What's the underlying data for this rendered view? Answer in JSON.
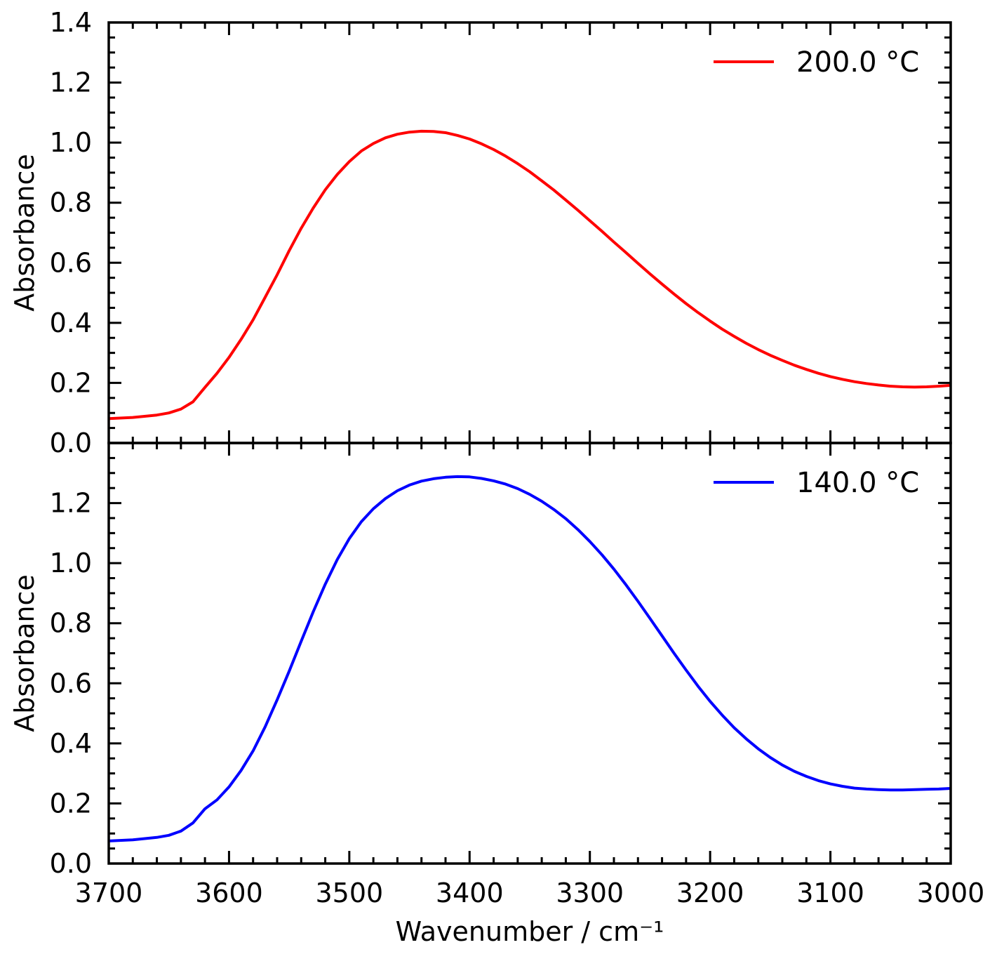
{
  "chart_data": [
    {
      "type": "line",
      "panel": "top",
      "xlabel": "",
      "ylabel": "Absorbance",
      "xlim": [
        3700,
        3000
      ],
      "ylim": [
        0.0,
        1.4
      ],
      "x_reversed": true,
      "yticks": [
        "0.0",
        "0.2",
        "0.4",
        "0.6",
        "0.8",
        "1.0",
        "1.2",
        "1.4"
      ],
      "legend_position": "top-right",
      "series": [
        {
          "name": "200.0 °C",
          "color": "#ff0000",
          "x": [
            3700,
            3680,
            3660,
            3650,
            3640,
            3630,
            3620,
            3610,
            3600,
            3590,
            3580,
            3570,
            3560,
            3550,
            3540,
            3530,
            3520,
            3510,
            3500,
            3490,
            3480,
            3470,
            3460,
            3450,
            3440,
            3430,
            3420,
            3410,
            3400,
            3390,
            3380,
            3370,
            3360,
            3350,
            3340,
            3330,
            3320,
            3310,
            3300,
            3290,
            3280,
            3270,
            3260,
            3250,
            3240,
            3230,
            3220,
            3210,
            3200,
            3190,
            3180,
            3170,
            3160,
            3150,
            3140,
            3130,
            3120,
            3110,
            3100,
            3090,
            3080,
            3070,
            3060,
            3050,
            3040,
            3030,
            3020,
            3010,
            3000
          ],
          "y": [
            0.081,
            0.085,
            0.093,
            0.1,
            0.113,
            0.137,
            0.185,
            0.232,
            0.285,
            0.345,
            0.41,
            0.485,
            0.56,
            0.64,
            0.715,
            0.782,
            0.843,
            0.894,
            0.937,
            0.972,
            0.997,
            1.016,
            1.028,
            1.035,
            1.038,
            1.037,
            1.033,
            1.024,
            1.012,
            0.996,
            0.977,
            0.955,
            0.93,
            0.903,
            0.873,
            0.842,
            0.809,
            0.775,
            0.74,
            0.705,
            0.669,
            0.634,
            0.598,
            0.563,
            0.529,
            0.496,
            0.464,
            0.434,
            0.406,
            0.379,
            0.355,
            0.332,
            0.311,
            0.292,
            0.275,
            0.259,
            0.245,
            0.232,
            0.221,
            0.212,
            0.204,
            0.198,
            0.193,
            0.189,
            0.187,
            0.186,
            0.187,
            0.189,
            0.192
          ]
        }
      ]
    },
    {
      "type": "line",
      "panel": "bottom",
      "xlabel": "Wavenumber / cm⁻¹",
      "ylabel": "Absorbance",
      "xlim": [
        3700,
        3000
      ],
      "ylim": [
        0.0,
        1.4
      ],
      "x_reversed": true,
      "xticks": [
        "3700",
        "3600",
        "3500",
        "3400",
        "3300",
        "3200",
        "3100",
        "3000"
      ],
      "yticks": [
        "0.0",
        "0.2",
        "0.4",
        "0.6",
        "0.8",
        "1.0",
        "1.2"
      ],
      "legend_position": "top-right",
      "series": [
        {
          "name": "140.0 °C",
          "color": "#0000ff",
          "x": [
            3700,
            3680,
            3660,
            3650,
            3640,
            3630,
            3620,
            3610,
            3600,
            3590,
            3580,
            3570,
            3560,
            3550,
            3540,
            3530,
            3520,
            3510,
            3500,
            3490,
            3480,
            3470,
            3460,
            3450,
            3440,
            3430,
            3420,
            3410,
            3400,
            3390,
            3380,
            3370,
            3360,
            3350,
            3340,
            3330,
            3320,
            3310,
            3300,
            3290,
            3280,
            3270,
            3260,
            3250,
            3240,
            3230,
            3220,
            3210,
            3200,
            3190,
            3180,
            3170,
            3160,
            3150,
            3140,
            3130,
            3120,
            3110,
            3100,
            3090,
            3080,
            3070,
            3060,
            3050,
            3040,
            3030,
            3020,
            3010,
            3000
          ],
          "y": [
            0.075,
            0.079,
            0.087,
            0.094,
            0.108,
            0.135,
            0.182,
            0.212,
            0.255,
            0.31,
            0.375,
            0.455,
            0.545,
            0.64,
            0.74,
            0.838,
            0.93,
            1.012,
            1.082,
            1.138,
            1.181,
            1.215,
            1.241,
            1.26,
            1.273,
            1.281,
            1.286,
            1.288,
            1.287,
            1.282,
            1.274,
            1.263,
            1.248,
            1.229,
            1.206,
            1.179,
            1.148,
            1.112,
            1.072,
            1.028,
            0.98,
            0.928,
            0.873,
            0.816,
            0.758,
            0.7,
            0.644,
            0.59,
            0.54,
            0.494,
            0.452,
            0.415,
            0.382,
            0.353,
            0.328,
            0.307,
            0.29,
            0.276,
            0.265,
            0.257,
            0.251,
            0.248,
            0.246,
            0.245,
            0.245,
            0.246,
            0.247,
            0.248,
            0.25
          ]
        }
      ]
    }
  ]
}
